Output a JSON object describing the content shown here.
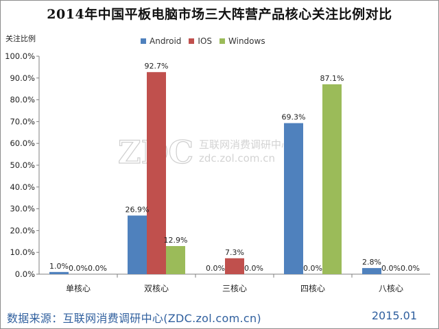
{
  "chart_data": {
    "type": "bar",
    "title": "2014年中国平板电脑市场三大阵营产品核心关注比例对比",
    "ylabel": "关注比例",
    "xlabel": "",
    "categories": [
      "单核心",
      "双核心",
      "三核心",
      "四核心",
      "八核心"
    ],
    "series": [
      {
        "name": "Android",
        "color": "#4f81bd",
        "values": [
          1.0,
          26.9,
          0.0,
          69.3,
          2.8
        ]
      },
      {
        "name": "IOS",
        "color": "#c0504d",
        "values": [
          0.0,
          92.7,
          7.3,
          0.0,
          0.0
        ]
      },
      {
        "name": "Windows",
        "color": "#9bbb59",
        "values": [
          0.0,
          12.9,
          0.0,
          87.1,
          0.0
        ]
      }
    ],
    "ylim": [
      0,
      100
    ],
    "yticks": [
      "0.0%",
      "10.0%",
      "20.0%",
      "30.0%",
      "40.0%",
      "50.0%",
      "60.0%",
      "70.0%",
      "80.0%",
      "90.0%",
      "100.0%"
    ],
    "value_suffix": "%",
    "grid": false,
    "legend_position": "top"
  },
  "watermark": {
    "logo": "ZDC",
    "line1": "互联网消费调研中心",
    "line2": "zdc.zol.com.cn"
  },
  "footer": {
    "source": "数据来源：互联网消费调研中心(ZDC.zol.com.cn)",
    "date": "2015.01"
  }
}
